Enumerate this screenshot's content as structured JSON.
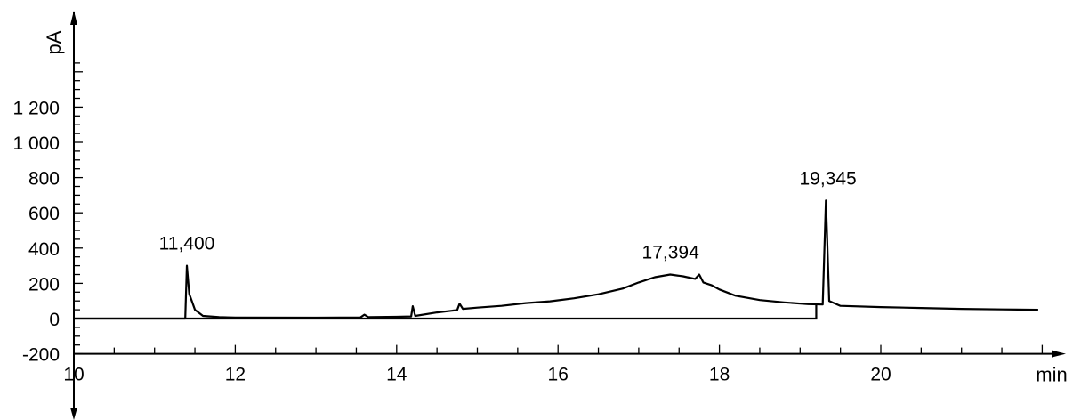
{
  "chart_data": {
    "type": "line",
    "title": "",
    "xlabel": "",
    "ylabel": "",
    "x_unit": "min",
    "y_unit": "pA",
    "xlim": [
      10,
      22
    ],
    "ylim": [
      -200,
      1450
    ],
    "x_ticks": [
      {
        "value": 10,
        "label": "10"
      },
      {
        "value": 12,
        "label": "12"
      },
      {
        "value": 14,
        "label": "14"
      },
      {
        "value": 16,
        "label": "16"
      },
      {
        "value": 18,
        "label": "18"
      },
      {
        "value": 20,
        "label": "20"
      }
    ],
    "y_ticks": [
      {
        "value": -200,
        "label": "-200"
      },
      {
        "value": 0,
        "label": "0"
      },
      {
        "value": 200,
        "label": "200"
      },
      {
        "value": 400,
        "label": "400"
      },
      {
        "value": 600,
        "label": "600"
      },
      {
        "value": 800,
        "label": "800"
      },
      {
        "value": 1000,
        "label": "1 000"
      },
      {
        "value": 1200,
        "label": "1 200"
      }
    ],
    "grid": false,
    "legend": "none",
    "series": [
      {
        "color": "#000000",
        "points": [
          [
            10.0,
            0
          ],
          [
            11.38,
            0
          ],
          [
            11.4,
            300
          ],
          [
            11.43,
            140
          ],
          [
            11.5,
            50
          ],
          [
            11.6,
            15
          ],
          [
            11.8,
            8
          ],
          [
            12.0,
            6
          ],
          [
            13.0,
            5
          ],
          [
            13.55,
            6
          ],
          [
            13.6,
            22
          ],
          [
            13.65,
            8
          ],
          [
            14.0,
            10
          ],
          [
            14.18,
            12
          ],
          [
            14.2,
            70
          ],
          [
            14.23,
            15
          ],
          [
            14.5,
            35
          ],
          [
            14.75,
            48
          ],
          [
            14.78,
            85
          ],
          [
            14.82,
            55
          ],
          [
            15.0,
            62
          ],
          [
            15.3,
            72
          ],
          [
            15.6,
            88
          ],
          [
            15.9,
            98
          ],
          [
            16.2,
            115
          ],
          [
            16.5,
            138
          ],
          [
            16.8,
            170
          ],
          [
            17.0,
            205
          ],
          [
            17.2,
            235
          ],
          [
            17.39,
            250
          ],
          [
            17.55,
            240
          ],
          [
            17.7,
            225
          ],
          [
            17.75,
            250
          ],
          [
            17.8,
            205
          ],
          [
            17.9,
            190
          ],
          [
            18.0,
            165
          ],
          [
            18.2,
            130
          ],
          [
            18.5,
            105
          ],
          [
            18.8,
            92
          ],
          [
            19.1,
            82
          ],
          [
            19.28,
            80
          ],
          [
            19.32,
            670
          ],
          [
            19.36,
            100
          ],
          [
            19.5,
            72
          ],
          [
            20.0,
            65
          ],
          [
            20.5,
            60
          ],
          [
            21.0,
            55
          ],
          [
            21.5,
            52
          ],
          [
            21.95,
            50
          ]
        ]
      }
    ],
    "baseline": {
      "x_start": 10.0,
      "x_end": 19.2,
      "y": 0,
      "drop_to_signal": 80
    },
    "annotations": [
      {
        "x": 11.4,
        "y": 300,
        "text": "11,400"
      },
      {
        "x": 17.394,
        "y": 250,
        "text": "17,394"
      },
      {
        "x": 19.345,
        "y": 670,
        "text": "19,345"
      }
    ]
  }
}
